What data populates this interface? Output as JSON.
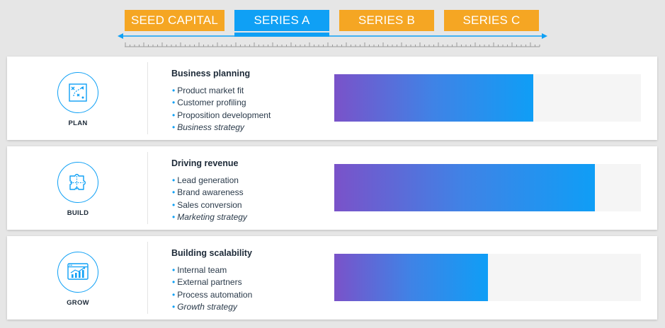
{
  "tabs": [
    {
      "label": "SEED CAPITAL",
      "active": false
    },
    {
      "label": "SERIES A",
      "active": true
    },
    {
      "label": "SERIES B",
      "active": false
    },
    {
      "label": "SERIES C",
      "active": false
    }
  ],
  "colors": {
    "accent": "#0fa0f5",
    "tab_inactive": "#f5a623",
    "gradient_start": "#7a52c9",
    "gradient_end": "#0f9ef6"
  },
  "rows": [
    {
      "icon": "plan-strategy-icon",
      "label": "PLAN",
      "heading": "Business planning",
      "bullets": [
        "Product market fit",
        "Customer profiling",
        "Proposition development"
      ],
      "emphasis": "Business strategy",
      "progress": 0.65
    },
    {
      "icon": "puzzle-icon",
      "label": "BUILD",
      "heading": "Driving revenue",
      "bullets": [
        "Lead generation",
        "Brand awareness",
        "Sales conversion"
      ],
      "emphasis": "Marketing strategy",
      "progress": 0.85
    },
    {
      "icon": "growth-chart-icon",
      "label": "GROW",
      "heading": "Building scalability",
      "bullets": [
        "Internal team",
        "External partners",
        "Process automation"
      ],
      "emphasis": "Growth strategy",
      "progress": 0.5
    }
  ]
}
